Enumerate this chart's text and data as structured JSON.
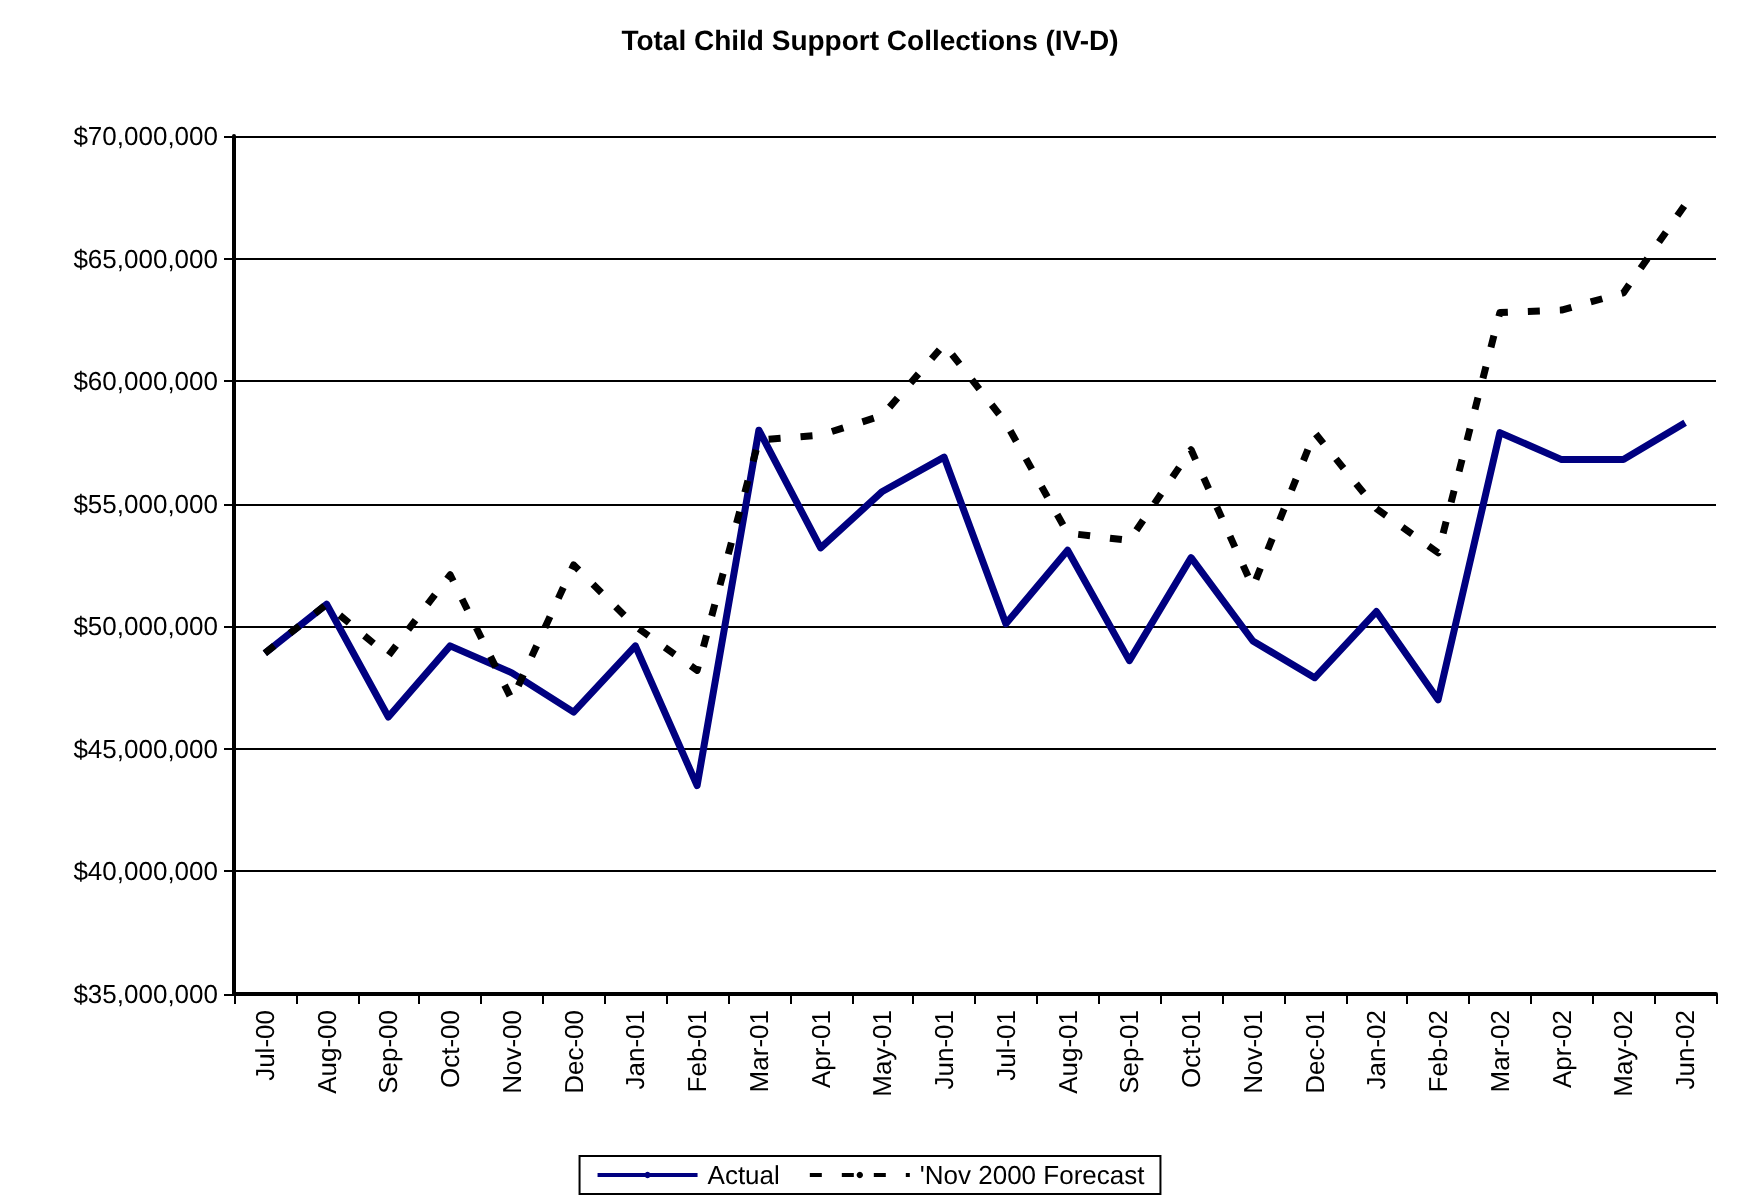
{
  "chart_data": {
    "type": "line",
    "title": "Total Child Support Collections (IV-D)",
    "categories": [
      "Jul-00",
      "Aug-00",
      "Sep-00",
      "Oct-00",
      "Nov-00",
      "Dec-00",
      "Jan-01",
      "Feb-01",
      "Mar-01",
      "Apr-01",
      "May-01",
      "Jun-01",
      "Jul-01",
      "Aug-01",
      "Sep-01",
      "Oct-01",
      "Nov-01",
      "Dec-01",
      "Jan-02",
      "Feb-02",
      "Mar-02",
      "Apr-02",
      "May-02",
      "Jun-02"
    ],
    "series": [
      {
        "name": "Actual",
        "color": "#000080",
        "line_style": "solid",
        "values": [
          48900000,
          50900000,
          46300000,
          49200000,
          48100000,
          46500000,
          49200000,
          43500000,
          58000000,
          53200000,
          55500000,
          56900000,
          50100000,
          53100000,
          48600000,
          52800000,
          49400000,
          47900000,
          50600000,
          47000000,
          57900000,
          56800000,
          56800000,
          58300000
        ]
      },
      {
        "name": "'Nov 2000 Forecast",
        "color": "#000000",
        "line_style": "dashed",
        "values": [
          48900000,
          50900000,
          48800000,
          52100000,
          47000000,
          52500000,
          50000000,
          48200000,
          57600000,
          57800000,
          58600000,
          61500000,
          58300000,
          53800000,
          53500000,
          57200000,
          51600000,
          57900000,
          54800000,
          53000000,
          62800000,
          62900000,
          63600000,
          67200000
        ]
      }
    ],
    "ylim": [
      35000000,
      70000000
    ],
    "yticks": [
      {
        "value": 35000000,
        "label": "$35,000,000"
      },
      {
        "value": 40000000,
        "label": "$40,000,000"
      },
      {
        "value": 45000000,
        "label": "$45,000,000"
      },
      {
        "value": 50000000,
        "label": "$50,000,000"
      },
      {
        "value": 55000000,
        "label": "$55,000,000"
      },
      {
        "value": 60000000,
        "label": "$60,000,000"
      },
      {
        "value": 65000000,
        "label": "$65,000,000"
      },
      {
        "value": 70000000,
        "label": "$70,000,000"
      }
    ],
    "grid": "y",
    "legend": "bottom",
    "marker": "none"
  }
}
